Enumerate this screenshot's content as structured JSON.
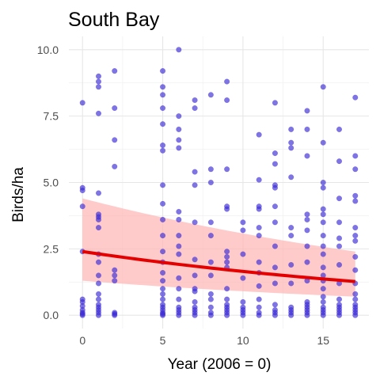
{
  "chart_data": {
    "type": "scatter",
    "title": "South Bay",
    "xlabel": "Year (2006 = 0)",
    "ylabel": "Birds/ha",
    "xlim": [
      -0.85,
      17.85
    ],
    "ylim": [
      -0.5,
      10.5
    ],
    "x_ticks": [
      0,
      5,
      10,
      15
    ],
    "x_tick_labels": [
      "0",
      "5",
      "10",
      "15"
    ],
    "y_ticks": [
      0,
      2.5,
      5,
      7.5,
      10
    ],
    "y_tick_labels": [
      "0.0",
      "2.5",
      "5.0",
      "7.5",
      "10.0"
    ],
    "grid": true,
    "colors": {
      "points": "#3a2ad6",
      "fit_line": "#e50000",
      "ribbon": "#ffb3b3"
    },
    "points": [
      [
        0,
        8.0
      ],
      [
        0,
        4.8
      ],
      [
        0,
        4.7
      ],
      [
        0,
        4.1
      ],
      [
        0,
        2.4
      ],
      [
        0,
        0.6
      ],
      [
        0,
        0.5
      ],
      [
        0,
        0.35
      ],
      [
        0,
        0.2
      ],
      [
        0,
        0.1
      ],
      [
        0,
        0.05
      ],
      [
        0,
        0.0
      ],
      [
        1,
        9.0
      ],
      [
        1,
        8.8
      ],
      [
        1,
        8.6
      ],
      [
        1,
        7.6
      ],
      [
        1,
        4.6
      ],
      [
        1,
        3.8
      ],
      [
        1,
        3.7
      ],
      [
        1,
        3.6
      ],
      [
        1,
        3.3
      ],
      [
        1,
        2.3
      ],
      [
        1,
        2.0
      ],
      [
        1,
        1.5
      ],
      [
        1,
        1.2
      ],
      [
        1,
        0.8
      ],
      [
        1,
        0.6
      ],
      [
        1,
        0.4
      ],
      [
        1,
        0.3
      ],
      [
        1,
        0.2
      ],
      [
        1,
        0.1
      ],
      [
        1,
        0.0
      ],
      [
        2,
        9.2
      ],
      [
        2,
        7.8
      ],
      [
        2,
        6.6
      ],
      [
        2,
        5.6
      ],
      [
        2,
        1.7
      ],
      [
        2,
        1.5
      ],
      [
        2,
        1.3
      ],
      [
        2,
        0.1
      ],
      [
        2,
        0.05
      ],
      [
        2,
        0.0
      ],
      [
        5,
        9.2
      ],
      [
        5,
        8.6
      ],
      [
        5,
        8.3
      ],
      [
        5,
        7.8
      ],
      [
        5,
        7.2
      ],
      [
        5,
        6.4
      ],
      [
        5,
        6.2
      ],
      [
        5,
        4.9
      ],
      [
        5,
        4.2
      ],
      [
        5,
        3.6
      ],
      [
        5,
        3.0
      ],
      [
        5,
        2.4
      ],
      [
        5,
        2.0
      ],
      [
        5,
        1.6
      ],
      [
        5,
        1.3
      ],
      [
        5,
        1.0
      ],
      [
        5,
        0.8
      ],
      [
        5,
        0.6
      ],
      [
        5,
        0.4
      ],
      [
        5,
        0.3
      ],
      [
        5,
        0.2
      ],
      [
        5,
        0.1
      ],
      [
        5,
        0.05
      ],
      [
        5,
        0.0
      ],
      [
        6,
        10.0
      ],
      [
        6,
        7.5
      ],
      [
        6,
        7.0
      ],
      [
        6,
        6.6
      ],
      [
        6,
        6.3
      ],
      [
        6,
        3.9
      ],
      [
        6,
        3.6
      ],
      [
        6,
        3.0
      ],
      [
        6,
        2.6
      ],
      [
        6,
        2.3
      ],
      [
        6,
        1.4
      ],
      [
        6,
        1.0
      ],
      [
        6,
        0.6
      ],
      [
        6,
        0.3
      ],
      [
        6,
        0.2
      ],
      [
        6,
        0.1
      ],
      [
        6,
        0.0
      ],
      [
        7,
        8.1
      ],
      [
        7,
        7.8
      ],
      [
        7,
        5.4
      ],
      [
        7,
        4.9
      ],
      [
        7,
        3.5
      ],
      [
        7,
        2.1
      ],
      [
        7,
        1.5
      ],
      [
        7,
        1.0
      ],
      [
        7,
        0.9
      ],
      [
        7,
        0.5
      ],
      [
        7,
        0.3
      ],
      [
        7,
        0.2
      ],
      [
        7,
        0.1
      ],
      [
        7,
        0.0
      ],
      [
        8,
        8.3
      ],
      [
        8,
        5.5
      ],
      [
        8,
        5.0
      ],
      [
        8,
        3.5
      ],
      [
        8,
        3.0
      ],
      [
        8,
        2.0
      ],
      [
        8,
        1.5
      ],
      [
        8,
        0.8
      ],
      [
        8,
        0.6
      ],
      [
        8,
        0.3
      ],
      [
        8,
        0.1
      ],
      [
        8,
        0.0
      ],
      [
        9,
        8.8
      ],
      [
        9,
        8.1
      ],
      [
        9,
        5.5
      ],
      [
        9,
        4.1
      ],
      [
        9,
        4.0
      ],
      [
        9,
        2.4
      ],
      [
        9,
        2.2
      ],
      [
        9,
        2.0
      ],
      [
        9,
        1.8
      ],
      [
        9,
        1.0
      ],
      [
        9,
        0.6
      ],
      [
        9,
        0.4
      ],
      [
        9,
        0.3
      ],
      [
        9,
        0.2
      ],
      [
        9,
        0.1
      ],
      [
        9,
        0.0
      ],
      [
        10,
        3.5
      ],
      [
        10,
        3.2
      ],
      [
        10,
        2.3
      ],
      [
        10,
        1.4
      ],
      [
        10,
        0.5
      ],
      [
        10,
        0.3
      ],
      [
        10,
        0.2
      ],
      [
        10,
        0.1
      ],
      [
        10,
        0.0
      ],
      [
        11,
        6.8
      ],
      [
        11,
        5.1
      ],
      [
        11,
        4.1
      ],
      [
        11,
        4.0
      ],
      [
        11,
        3.3
      ],
      [
        11,
        3.0
      ],
      [
        11,
        2.0
      ],
      [
        11,
        1.6
      ],
      [
        11,
        1.1
      ],
      [
        11,
        0.6
      ],
      [
        11,
        0.3
      ],
      [
        11,
        0.1
      ],
      [
        11,
        0.0
      ],
      [
        12,
        8.0
      ],
      [
        12,
        6.1
      ],
      [
        12,
        5.7
      ],
      [
        12,
        4.9
      ],
      [
        12,
        4.8
      ],
      [
        12,
        4.1
      ],
      [
        12,
        3.5
      ],
      [
        12,
        2.6
      ],
      [
        12,
        1.8
      ],
      [
        12,
        1.2
      ],
      [
        12,
        0.4
      ],
      [
        12,
        0.2
      ],
      [
        12,
        0.1
      ],
      [
        12,
        0.0
      ],
      [
        13,
        7.0
      ],
      [
        13,
        6.5
      ],
      [
        13,
        6.3
      ],
      [
        13,
        5.2
      ],
      [
        13,
        3.3
      ],
      [
        13,
        3.0
      ],
      [
        13,
        1.9
      ],
      [
        13,
        1.2
      ],
      [
        13,
        0.3
      ],
      [
        13,
        0.2
      ],
      [
        13,
        0.1
      ],
      [
        13,
        0.0
      ],
      [
        14,
        7.7
      ],
      [
        14,
        7.0
      ],
      [
        14,
        6.0
      ],
      [
        14,
        3.8
      ],
      [
        14,
        3.6
      ],
      [
        14,
        3.2
      ],
      [
        14,
        2.6
      ],
      [
        14,
        2.0
      ],
      [
        14,
        1.3
      ],
      [
        14,
        0.5
      ],
      [
        14,
        0.4
      ],
      [
        14,
        0.3
      ],
      [
        14,
        0.2
      ],
      [
        14,
        0.1
      ],
      [
        14,
        0.0
      ],
      [
        15,
        8.6
      ],
      [
        15,
        6.5
      ],
      [
        15,
        5.0
      ],
      [
        15,
        4.8
      ],
      [
        15,
        4.0
      ],
      [
        15,
        3.8
      ],
      [
        15,
        3.5
      ],
      [
        15,
        3.0
      ],
      [
        15,
        2.6
      ],
      [
        15,
        2.3
      ],
      [
        15,
        1.8
      ],
      [
        15,
        1.5
      ],
      [
        15,
        1.3
      ],
      [
        15,
        1.0
      ],
      [
        15,
        0.7
      ],
      [
        15,
        0.5
      ],
      [
        15,
        0.3
      ],
      [
        15,
        0.2
      ],
      [
        15,
        0.1
      ],
      [
        15,
        0.0
      ],
      [
        16,
        7.0
      ],
      [
        16,
        5.8
      ],
      [
        16,
        4.4
      ],
      [
        16,
        3.5
      ],
      [
        16,
        2.9
      ],
      [
        16,
        2.6
      ],
      [
        16,
        1.9
      ],
      [
        16,
        1.2
      ],
      [
        16,
        0.6
      ],
      [
        16,
        0.4
      ],
      [
        16,
        0.3
      ],
      [
        16,
        0.2
      ],
      [
        16,
        0.1
      ],
      [
        16,
        0.0
      ],
      [
        17,
        8.2
      ],
      [
        17,
        6.0
      ],
      [
        17,
        5.5
      ],
      [
        17,
        4.5
      ],
      [
        17,
        4.3
      ],
      [
        17,
        3.3
      ],
      [
        17,
        3.0
      ],
      [
        17,
        2.8
      ],
      [
        17,
        2.2
      ],
      [
        17,
        1.7
      ],
      [
        17,
        1.2
      ],
      [
        17,
        0.8
      ],
      [
        17,
        0.6
      ],
      [
        17,
        0.4
      ],
      [
        17,
        0.3
      ],
      [
        17,
        0.2
      ],
      [
        17,
        0.1
      ],
      [
        17,
        0.0
      ]
    ],
    "fit": {
      "x": [
        0,
        17
      ],
      "y": [
        2.4,
        1.27
      ],
      "lower": [
        1.3,
        0.7
      ],
      "upper": [
        4.4,
        2.4
      ]
    }
  }
}
